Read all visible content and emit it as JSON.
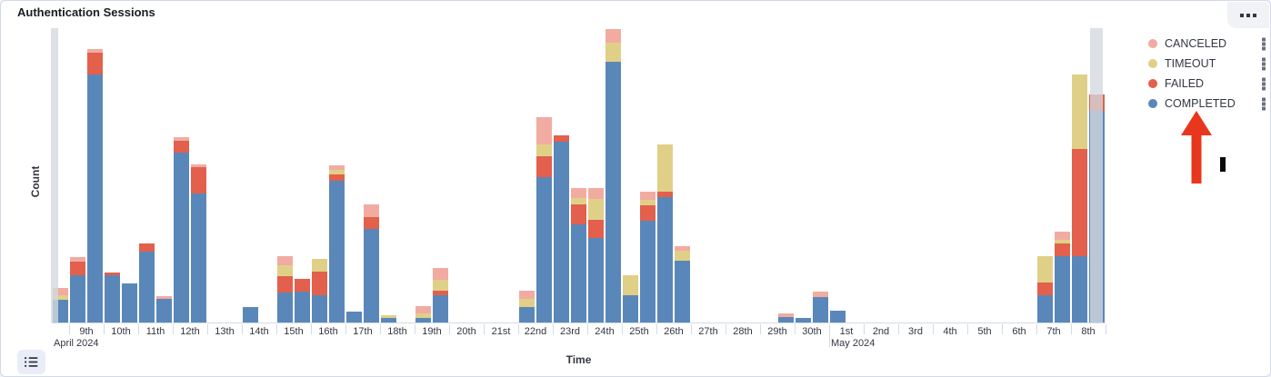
{
  "panel": {
    "title": "Authentication Sessions",
    "options_icon": "boxes-horizontal-icon",
    "legend_toggle_icon": "list-icon"
  },
  "legend": {
    "items": [
      {
        "label": "CANCELED",
        "color": "#f2aba1"
      },
      {
        "label": "TIMEOUT",
        "color": "#e0d087"
      },
      {
        "label": "FAILED",
        "color": "#e2604c"
      },
      {
        "label": "COMPLETED",
        "color": "#5a87b9"
      }
    ],
    "item_action_icon": "boxes-vertical-icon"
  },
  "annotations": {
    "arrow": {
      "shape": "up-arrow",
      "color": "#e8371d",
      "points_at": "COMPLETED legend item"
    },
    "marker": {
      "shape": "vertical-bar",
      "color": "#0a0a0a"
    }
  },
  "chart_data": {
    "type": "bar",
    "stacked": true,
    "bucket_interval": "12h",
    "title": "Authentication Sessions",
    "xlabel": "Time",
    "ylabel": "Count",
    "y_tick_labels": [],
    "ylim": [
      0,
      330
    ],
    "grid": false,
    "legend_position": "right",
    "series_order_bottom_to_top": [
      "COMPLETED",
      "FAILED",
      "TIMEOUT",
      "CANCELED"
    ],
    "series_colors": {
      "COMPLETED": "#5a87b9",
      "FAILED": "#e2604c",
      "TIMEOUT": "#e0d087",
      "CANCELED": "#f2aba1"
    },
    "x_tick_labels": [
      "9th",
      "10th",
      "11th",
      "12th",
      "13th",
      "14th",
      "15th",
      "16th",
      "17th",
      "18th",
      "19th",
      "20th",
      "21st",
      "22nd",
      "23rd",
      "24th",
      "25th",
      "26th",
      "27th",
      "28th",
      "29th",
      "30th",
      "1st",
      "2nd",
      "3rd",
      "4th",
      "5th",
      "6th",
      "7th",
      "8th"
    ],
    "x_secondary_labels": [
      {
        "label": "April 2024",
        "day_index": -0.5
      },
      {
        "label": "May 2024",
        "day_index": 22
      }
    ],
    "partial_bands": [
      {
        "position": "start",
        "offset": -1,
        "width": 8
      },
      {
        "position": "end",
        "offset": 1142,
        "width": 14
      }
    ],
    "buckets": [
      {
        "i": 0,
        "t": "Apr 8 PM",
        "COMPLETED": 25,
        "FAILED": 0,
        "TIMEOUT": 5,
        "CANCELED": 8
      },
      {
        "i": 1,
        "t": "Apr 9 AM",
        "COMPLETED": 52,
        "FAILED": 15,
        "TIMEOUT": 0,
        "CANCELED": 5
      },
      {
        "i": 2,
        "t": "Apr 9 PM",
        "COMPLETED": 273,
        "FAILED": 24,
        "TIMEOUT": 0,
        "CANCELED": 4
      },
      {
        "i": 3,
        "t": "Apr 10 AM",
        "COMPLETED": 52,
        "FAILED": 3,
        "TIMEOUT": 0,
        "CANCELED": 0
      },
      {
        "i": 4,
        "t": "Apr 10 PM",
        "COMPLETED": 43,
        "FAILED": 0,
        "TIMEOUT": 0,
        "CANCELED": 0
      },
      {
        "i": 5,
        "t": "Apr 11 AM",
        "COMPLETED": 78,
        "FAILED": 9,
        "TIMEOUT": 0,
        "CANCELED": 0
      },
      {
        "i": 6,
        "t": "Apr 11 PM",
        "COMPLETED": 26,
        "FAILED": 0,
        "TIMEOUT": 0,
        "CANCELED": 3
      },
      {
        "i": 7,
        "t": "Apr 12 AM",
        "COMPLETED": 187,
        "FAILED": 13,
        "TIMEOUT": 0,
        "CANCELED": 4
      },
      {
        "i": 8,
        "t": "Apr 12 PM",
        "COMPLETED": 142,
        "FAILED": 29,
        "TIMEOUT": 0,
        "CANCELED": 3
      },
      {
        "i": 11,
        "t": "Apr 14 AM",
        "COMPLETED": 17,
        "FAILED": 0,
        "TIMEOUT": 0,
        "CANCELED": 0
      },
      {
        "i": 13,
        "t": "Apr 15 AM",
        "COMPLETED": 33,
        "FAILED": 18,
        "TIMEOUT": 12,
        "CANCELED": 10
      },
      {
        "i": 14,
        "t": "Apr 15 PM",
        "COMPLETED": 34,
        "FAILED": 14,
        "TIMEOUT": 0,
        "CANCELED": 0
      },
      {
        "i": 15,
        "t": "Apr 16 AM",
        "COMPLETED": 30,
        "FAILED": 26,
        "TIMEOUT": 14,
        "CANCELED": 0
      },
      {
        "i": 16,
        "t": "Apr 16 PM",
        "COMPLETED": 156,
        "FAILED": 7,
        "TIMEOUT": 5,
        "CANCELED": 5
      },
      {
        "i": 17,
        "t": "Apr 17 AM",
        "COMPLETED": 12,
        "FAILED": 0,
        "TIMEOUT": 0,
        "CANCELED": 0
      },
      {
        "i": 18,
        "t": "Apr 17 PM",
        "COMPLETED": 103,
        "FAILED": 13,
        "TIMEOUT": 0,
        "CANCELED": 14
      },
      {
        "i": 19,
        "t": "Apr 18 AM",
        "COMPLETED": 5,
        "FAILED": 0,
        "TIMEOUT": 3,
        "CANCELED": 0
      },
      {
        "i": 21,
        "t": "Apr 19 AM",
        "COMPLETED": 5,
        "FAILED": 0,
        "TIMEOUT": 5,
        "CANCELED": 8
      },
      {
        "i": 22,
        "t": "Apr 19 PM",
        "COMPLETED": 30,
        "FAILED": 5,
        "TIMEOUT": 12,
        "CANCELED": 13
      },
      {
        "i": 27,
        "t": "Apr 22 AM",
        "COMPLETED": 17,
        "FAILED": 0,
        "TIMEOUT": 9,
        "CANCELED": 9
      },
      {
        "i": 28,
        "t": "Apr 22 PM",
        "COMPLETED": 160,
        "FAILED": 23,
        "TIMEOUT": 13,
        "CANCELED": 30
      },
      {
        "i": 29,
        "t": "Apr 23 AM",
        "COMPLETED": 199,
        "FAILED": 7,
        "TIMEOUT": 0,
        "CANCELED": 0
      },
      {
        "i": 30,
        "t": "Apr 23 PM",
        "COMPLETED": 108,
        "FAILED": 22,
        "TIMEOUT": 7,
        "CANCELED": 11
      },
      {
        "i": 31,
        "t": "Apr 24 AM",
        "COMPLETED": 93,
        "FAILED": 20,
        "TIMEOUT": 23,
        "CANCELED": 12
      },
      {
        "i": 32,
        "t": "Apr 24 PM",
        "COMPLETED": 287,
        "FAILED": 0,
        "TIMEOUT": 21,
        "CANCELED": 15
      },
      {
        "i": 33,
        "t": "Apr 25 AM",
        "COMPLETED": 30,
        "FAILED": 0,
        "TIMEOUT": 22,
        "CANCELED": 0
      },
      {
        "i": 34,
        "t": "Apr 25 PM",
        "COMPLETED": 112,
        "FAILED": 17,
        "TIMEOUT": 6,
        "CANCELED": 9
      },
      {
        "i": 35,
        "t": "Apr 26 AM",
        "COMPLETED": 138,
        "FAILED": 6,
        "TIMEOUT": 52,
        "CANCELED": 0
      },
      {
        "i": 36,
        "t": "Apr 26 PM",
        "COMPLETED": 68,
        "FAILED": 0,
        "TIMEOUT": 11,
        "CANCELED": 5
      },
      {
        "i": 42,
        "t": "Apr 29 PM",
        "COMPLETED": 6,
        "FAILED": 0,
        "TIMEOUT": 0,
        "CANCELED": 4
      },
      {
        "i": 43,
        "t": "Apr 30 AM",
        "COMPLETED": 5,
        "FAILED": 0,
        "TIMEOUT": 0,
        "CANCELED": 0
      },
      {
        "i": 44,
        "t": "Apr 30 PM",
        "COMPLETED": 28,
        "FAILED": 0,
        "TIMEOUT": 0,
        "CANCELED": 6
      },
      {
        "i": 45,
        "t": "May 1 AM",
        "COMPLETED": 13,
        "FAILED": 0,
        "TIMEOUT": 0,
        "CANCELED": 0
      },
      {
        "i": 57,
        "t": "May 7 AM",
        "COMPLETED": 30,
        "FAILED": 14,
        "TIMEOUT": 29,
        "CANCELED": 0
      },
      {
        "i": 58,
        "t": "May 7 PM",
        "COMPLETED": 73,
        "FAILED": 14,
        "TIMEOUT": 4,
        "CANCELED": 9
      },
      {
        "i": 59,
        "t": "May 8 AM",
        "COMPLETED": 73,
        "FAILED": 118,
        "TIMEOUT": 82,
        "CANCELED": 0
      },
      {
        "i": 60,
        "t": "May 8 PM",
        "COMPLETED": 233,
        "FAILED": 18,
        "TIMEOUT": 0,
        "CANCELED": 0
      }
    ]
  }
}
